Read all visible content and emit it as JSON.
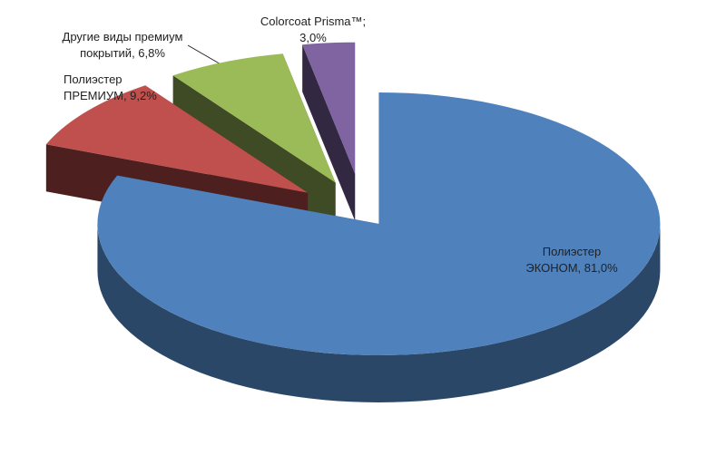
{
  "chart_data": {
    "type": "pie",
    "values": [
      81.0,
      9.2,
      6.8,
      3.0
    ],
    "value_labels": [
      "Полиэстер\nЭКОНОМ, 81,0%",
      "Полиэстер\nПРЕМИУМ, 9,2%",
      "Другие виды  премиум\nпокрытий, 6,8%",
      "Colorcoat Prisma™;\n3,0%"
    ],
    "colors": [
      "#4f81bd",
      "#c0504d",
      "#9bbb59",
      "#8064a2"
    ]
  }
}
